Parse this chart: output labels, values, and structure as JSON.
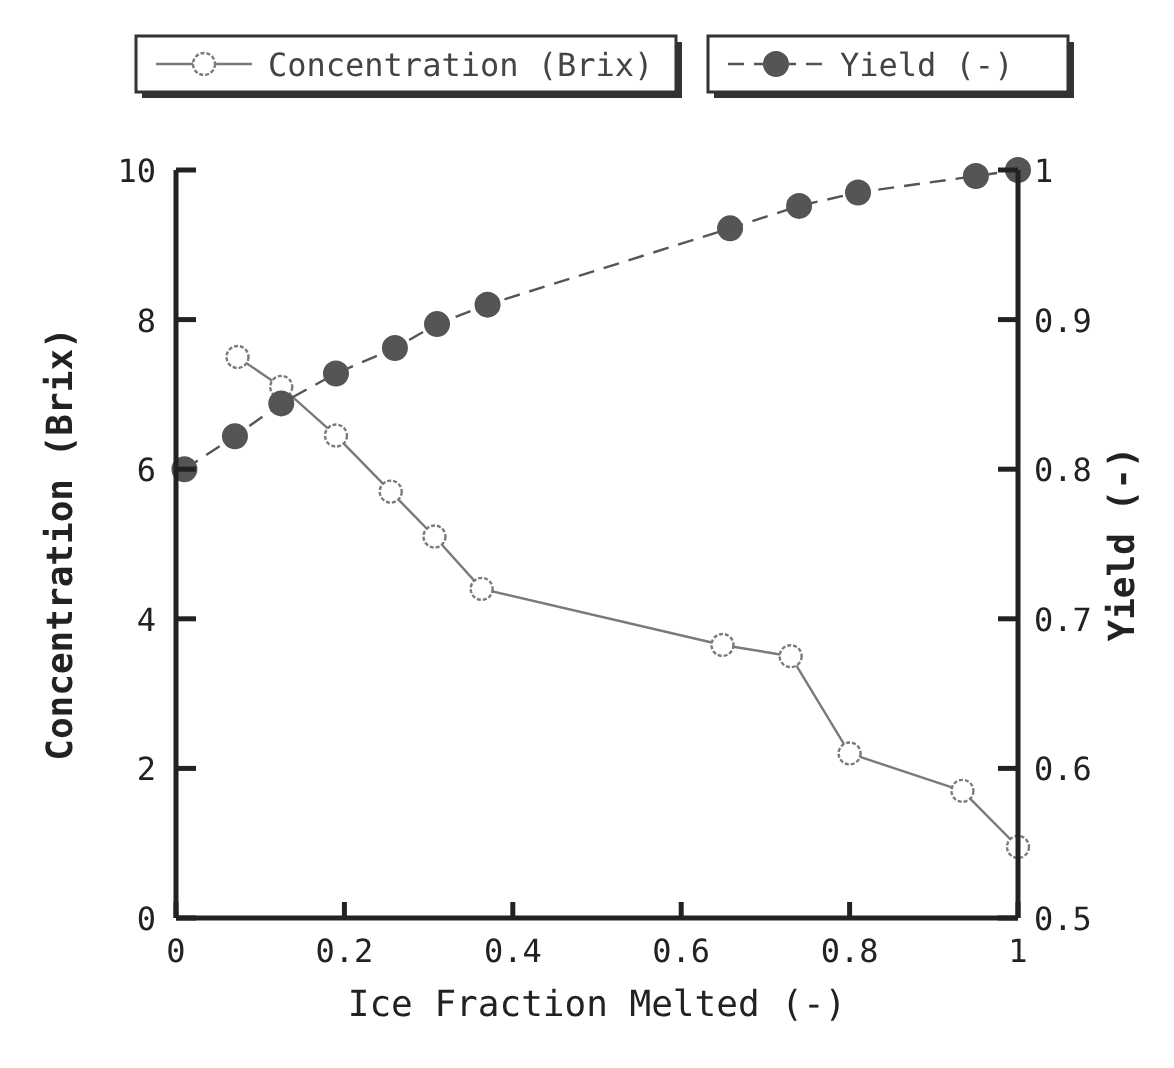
{
  "chart_data": {
    "type": "line",
    "xlabel": "Ice Fraction Melted (-)",
    "ylabel": "Concentration (Brix)",
    "y2label": "Yield (-)",
    "xlim": [
      0,
      1
    ],
    "xticks": [
      0,
      {
        "value": 0.2,
        "label": "0.2"
      },
      {
        "value": 0.4,
        "label": "0.4"
      },
      {
        "value": 0.6,
        "label": "0.6"
      },
      {
        "value": 0.8,
        "label": "0.8"
      },
      1
    ],
    "ylim": [
      0,
      10
    ],
    "yticks": [
      0,
      2,
      4,
      6,
      8,
      10
    ],
    "y2lim": [
      0.5,
      1
    ],
    "y2ticks": [
      {
        "value": 0.5,
        "label": "0.5"
      },
      {
        "value": 0.6,
        "label": "0.6"
      },
      {
        "value": 0.7,
        "label": "0.7"
      },
      {
        "value": 0.8,
        "label": "0.8"
      },
      {
        "value": 0.9,
        "label": "0.9"
      },
      1
    ],
    "legend": "top",
    "grid": false,
    "series": [
      {
        "name": "Concentration (Brix)",
        "color": "#7a7a7a",
        "marker": "circle_open",
        "line_style": "solid",
        "x": [
          0.073,
          0.125,
          0.19,
          0.255,
          0.307,
          0.363,
          0.649,
          0.73,
          0.8,
          0.934,
          1.0
        ],
        "values": [
          7.5,
          7.1,
          6.45,
          5.7,
          5.1,
          4.4,
          3.65,
          3.5,
          2.2,
          1.7,
          0.95
        ]
      },
      {
        "name": "Yield (-)",
        "color": "#555555",
        "marker": "circle",
        "line_style": "dashed",
        "axis": "y2",
        "x": [
          0.01,
          0.07,
          0.125,
          0.19,
          0.26,
          0.31,
          0.37,
          0.658,
          0.74,
          0.81,
          0.95,
          1.0
        ],
        "values": [
          0.8,
          0.822,
          0.844,
          0.864,
          0.881,
          0.897,
          0.91,
          0.961,
          0.976,
          0.985,
          0.996,
          1.0
        ]
      }
    ]
  }
}
